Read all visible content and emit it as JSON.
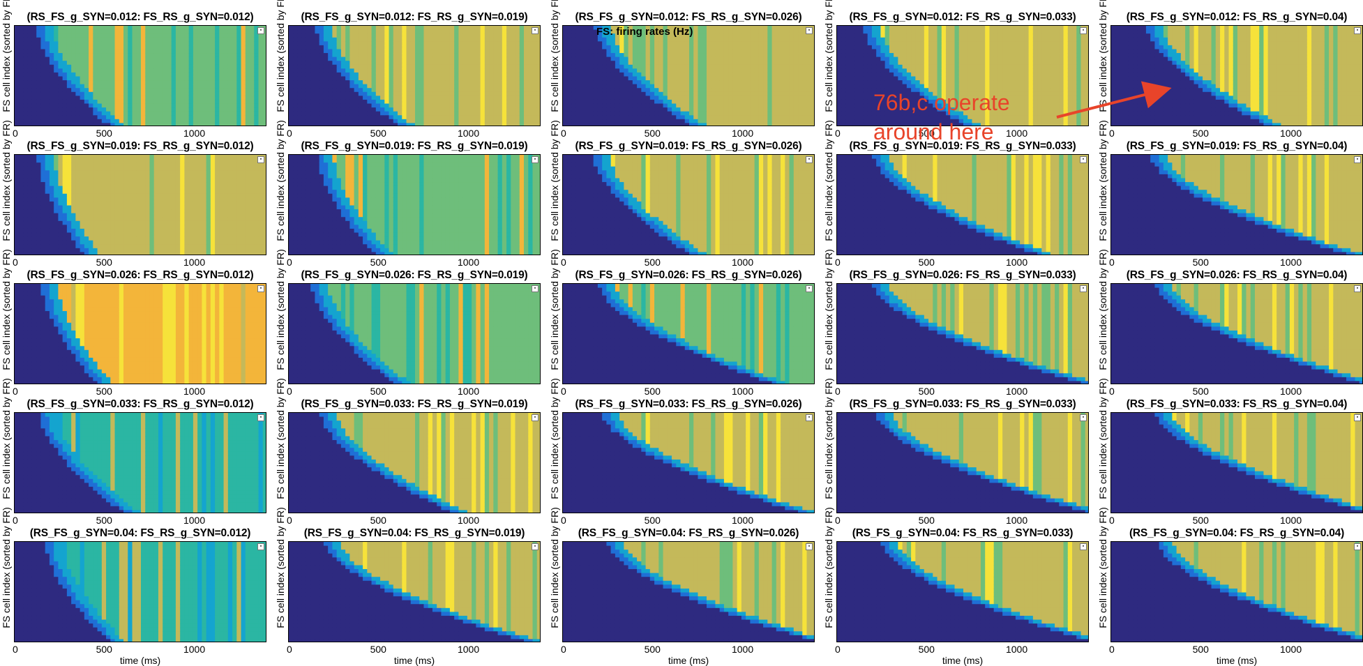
{
  "figure_label": "FS: firing rates (Hz)",
  "annotation": {
    "line1": "76b,c operate",
    "line2": "around here",
    "color": "#e8442a"
  },
  "axis": {
    "ylabel": "FS cell index (sorted by FR)",
    "xlabel": "time (ms)",
    "xticks": [
      "0",
      "500",
      "1000"
    ],
    "xlim": [
      0,
      1400
    ]
  },
  "colormap": [
    "#2e2a80",
    "#1f6fd6",
    "#14a4cf",
    "#2bb6a3",
    "#6ebe7b",
    "#c4b95a",
    "#f3b53a",
    "#f6e23a"
  ],
  "chart_data": {
    "type": "heatmap",
    "rows_param": "RS_FS_g_SYN",
    "cols_param": "FS_RS_g_SYN",
    "rs_fs_values": [
      "0.012",
      "0.019",
      "0.026",
      "0.033",
      "0.04"
    ],
    "fs_rs_values": [
      "0.012",
      "0.019",
      "0.026",
      "0.033",
      "0.04"
    ],
    "xlabel": "time (ms)",
    "ylabel": "FS cell index (sorted by FR)",
    "xlim": [
      0,
      1400
    ],
    "xticks": [
      0,
      500,
      1000
    ],
    "panels": [
      {
        "title": "(RS_FS_g_SYN=0.012: FS_RS_g_SYN=0.012)",
        "row": 0,
        "col": 0,
        "onset_start": 120,
        "onset_end": 520,
        "level": 4
      },
      {
        "title": "(RS_FS_g_SYN=0.012: FS_RS_g_SYN=0.019)",
        "row": 0,
        "col": 1,
        "onset_start": 150,
        "onset_end": 600,
        "level": 5
      },
      {
        "title": "(RS_FS_g_SYN=0.012: FS_RS_g_SYN=0.026)",
        "row": 0,
        "col": 2,
        "onset_start": 180,
        "onset_end": 700,
        "level": 5
      },
      {
        "title": "(RS_FS_g_SYN=0.012: FS_RS_g_SYN=0.033)",
        "row": 0,
        "col": 3,
        "onset_start": 150,
        "onset_end": 700,
        "level": 5
      },
      {
        "title": "(RS_FS_g_SYN=0.012: FS_RS_g_SYN=0.04)",
        "row": 0,
        "col": 4,
        "onset_start": 200,
        "onset_end": 850,
        "level": 5
      },
      {
        "title": "(RS_FS_g_SYN=0.019: FS_RS_g_SYN=0.012)",
        "row": 1,
        "col": 0,
        "onset_start": 130,
        "onset_end": 380,
        "level": 5
      },
      {
        "title": "(RS_FS_g_SYN=0.019: FS_RS_g_SYN=0.019)",
        "row": 1,
        "col": 1,
        "onset_start": 160,
        "onset_end": 480,
        "level": 4
      },
      {
        "title": "(RS_FS_g_SYN=0.019: FS_RS_g_SYN=0.026)",
        "row": 1,
        "col": 2,
        "onset_start": 170,
        "onset_end": 700,
        "level": 5
      },
      {
        "title": "(RS_FS_g_SYN=0.019: FS_RS_g_SYN=0.033)",
        "row": 1,
        "col": 3,
        "onset_start": 200,
        "onset_end": 1100,
        "level": 5
      },
      {
        "title": "(RS_FS_g_SYN=0.019: FS_RS_g_SYN=0.04)",
        "row": 1,
        "col": 4,
        "onset_start": 220,
        "onset_end": 1300,
        "level": 5
      },
      {
        "title": "(RS_FS_g_SYN=0.026: FS_RS_g_SYN=0.012)",
        "row": 2,
        "col": 0,
        "onset_start": 150,
        "onset_end": 450,
        "level": 6
      },
      {
        "title": "(RS_FS_g_SYN=0.026: FS_RS_g_SYN=0.019)",
        "row": 2,
        "col": 1,
        "onset_start": 130,
        "onset_end": 580,
        "level": 4
      },
      {
        "title": "(RS_FS_g_SYN=0.026: FS_RS_g_SYN=0.026)",
        "row": 2,
        "col": 2,
        "onset_start": 200,
        "onset_end": 1150,
        "level": 4
      },
      {
        "title": "(RS_FS_g_SYN=0.026: FS_RS_g_SYN=0.033)",
        "row": 2,
        "col": 3,
        "onset_start": 200,
        "onset_end": 1350,
        "level": 5
      },
      {
        "title": "(RS_FS_g_SYN=0.026: FS_RS_g_SYN=0.04)",
        "row": 2,
        "col": 4,
        "onset_start": 250,
        "onset_end": 1380,
        "level": 5
      },
      {
        "title": "(RS_FS_g_SYN=0.033: FS_RS_g_SYN=0.012)",
        "row": 3,
        "col": 0,
        "onset_start": 140,
        "onset_end": 600,
        "level": 3
      },
      {
        "title": "(RS_FS_g_SYN=0.033: FS_RS_g_SYN=0.019)",
        "row": 3,
        "col": 1,
        "onset_start": 180,
        "onset_end": 900,
        "level": 5
      },
      {
        "title": "(RS_FS_g_SYN=0.033: FS_RS_g_SYN=0.026)",
        "row": 3,
        "col": 2,
        "onset_start": 220,
        "onset_end": 1300,
        "level": 5
      },
      {
        "title": "(RS_FS_g_SYN=0.033: FS_RS_g_SYN=0.033)",
        "row": 3,
        "col": 3,
        "onset_start": 220,
        "onset_end": 1380,
        "level": 5
      },
      {
        "title": "(RS_FS_g_SYN=0.033: FS_RS_g_SYN=0.04)",
        "row": 3,
        "col": 4,
        "onset_start": 250,
        "onset_end": 1390,
        "level": 5
      },
      {
        "title": "(RS_FS_g_SYN=0.04: FS_RS_g_SYN=0.012)",
        "row": 4,
        "col": 0,
        "onset_start": 170,
        "onset_end": 520,
        "level": 3
      },
      {
        "title": "(RS_FS_g_SYN=0.04: FS_RS_g_SYN=0.019)",
        "row": 4,
        "col": 1,
        "onset_start": 200,
        "onset_end": 1300,
        "level": 5
      },
      {
        "title": "(RS_FS_g_SYN=0.04: FS_RS_g_SYN=0.026)",
        "row": 4,
        "col": 2,
        "onset_start": 250,
        "onset_end": 1390,
        "level": 5
      },
      {
        "title": "(RS_FS_g_SYN=0.04: FS_RS_g_SYN=0.033)",
        "row": 4,
        "col": 3,
        "onset_start": 250,
        "onset_end": 1395,
        "level": 5
      },
      {
        "title": "(RS_FS_g_SYN=0.04: FS_RS_g_SYN=0.04)",
        "row": 4,
        "col": 4,
        "onset_start": 260,
        "onset_end": 1395,
        "level": 5
      }
    ]
  }
}
